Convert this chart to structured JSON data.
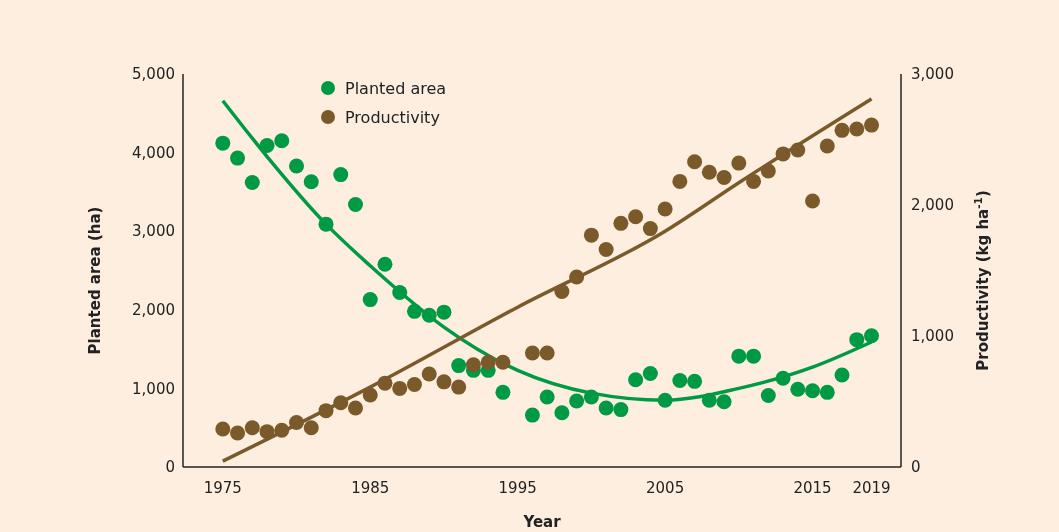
{
  "chart_data": {
    "type": "scatter",
    "xlabel": "Year",
    "ylabel": "Planted area (ha)",
    "y2label": "Productivity (kg ha$^{-1}$)",
    "xlim": [
      1972.3,
      2021
    ],
    "xticks": [
      1975,
      1985,
      1995,
      2005,
      2015,
      2019
    ],
    "ylim": [
      0,
      5000
    ],
    "yticks": [
      {
        "value": 0,
        "label": "0"
      },
      {
        "value": 1000,
        "label": "1,000"
      },
      {
        "value": 2000,
        "label": "2,000"
      },
      {
        "value": 3000,
        "label": "3,000"
      },
      {
        "value": 4000,
        "label": "4,000"
      },
      {
        "value": 5000,
        "label": "5,000"
      }
    ],
    "y2lim": [
      0,
      3000
    ],
    "y2ticks": [
      {
        "value": 0,
        "label": "0"
      },
      {
        "value": 1000,
        "label": "1,000"
      },
      {
        "value": 2000,
        "label": "2,000"
      },
      {
        "value": 3000,
        "label": "3,000"
      }
    ],
    "grid": false,
    "legend": "top left",
    "marker": "circle",
    "series": [
      {
        "name": "Planted area",
        "color": "#009a44",
        "x": [
          1975,
          1976,
          1977,
          1978,
          1979,
          1980,
          1981,
          1982,
          1983,
          1984,
          1985,
          1986,
          1987,
          1988,
          1989,
          1990,
          1991,
          1992,
          1993,
          1994,
          1996,
          1997,
          1998,
          1999,
          2000,
          2001,
          2002,
          2003,
          2004,
          2005,
          2006,
          2007,
          2008,
          2009,
          2010,
          2011,
          2012,
          2013,
          2014,
          2015,
          2016,
          2017,
          2018,
          2019
        ],
        "values": [
          4120,
          3930,
          3620,
          4090,
          4150,
          3830,
          3630,
          3090,
          3720,
          3340,
          2130,
          2580,
          2220,
          1980,
          1930,
          1970,
          1290,
          1230,
          1230,
          950,
          660,
          890,
          690,
          840,
          890,
          750,
          730,
          1110,
          1190,
          850,
          1100,
          1090,
          850,
          830,
          1410,
          1410,
          910,
          1130,
          990,
          970,
          950,
          1170,
          1620,
          1670
        ]
      },
      {
        "name": "Productivity",
        "axis": "y2",
        "color": "#7a5a2a",
        "x": [
          1975,
          1976,
          1977,
          1978,
          1979,
          1980,
          1981,
          1982,
          1983,
          1984,
          1985,
          1986,
          1987,
          1988,
          1989,
          1990,
          1991,
          1992,
          1993,
          1994,
          1996,
          1997,
          1998,
          1999,
          2000,
          2001,
          2002,
          2003,
          2004,
          2005,
          2006,
          2007,
          2008,
          2009,
          2010,
          2011,
          2012,
          2013,
          2014,
          2015,
          2016,
          2017,
          2018,
          2019
        ],
        "values": [
          290,
          260,
          300,
          270,
          280,
          340,
          300,
          430,
          490,
          450,
          550,
          640,
          600,
          630,
          710,
          650,
          610,
          780,
          800,
          800,
          870,
          870,
          1340,
          1450,
          1770,
          1660,
          1860,
          1910,
          1820,
          1970,
          2180,
          2330,
          2250,
          2210,
          2320,
          2180,
          2260,
          2390,
          2420,
          2030,
          2450,
          2570,
          2580,
          2610
        ]
      },
      {
        "type": "line",
        "color": "#009a44",
        "marker": "none",
        "x": [
          1975,
          1978,
          1982,
          1985,
          1987,
          1990,
          1995,
          2000,
          2005,
          2010,
          2015,
          2019
        ],
        "values": [
          4660,
          3950,
          3090,
          2560,
          2230,
          1780,
          1230,
          940,
          850,
          1000,
          1270,
          1590
        ]
      },
      {
        "type": "line",
        "axis": "y2",
        "color": "#7a5a2a",
        "marker": "none",
        "x": [
          1975,
          1985,
          1995,
          2005,
          2010,
          2019
        ],
        "values": [
          45,
          610,
          1220,
          1800,
          2170,
          2810
        ]
      }
    ]
  }
}
